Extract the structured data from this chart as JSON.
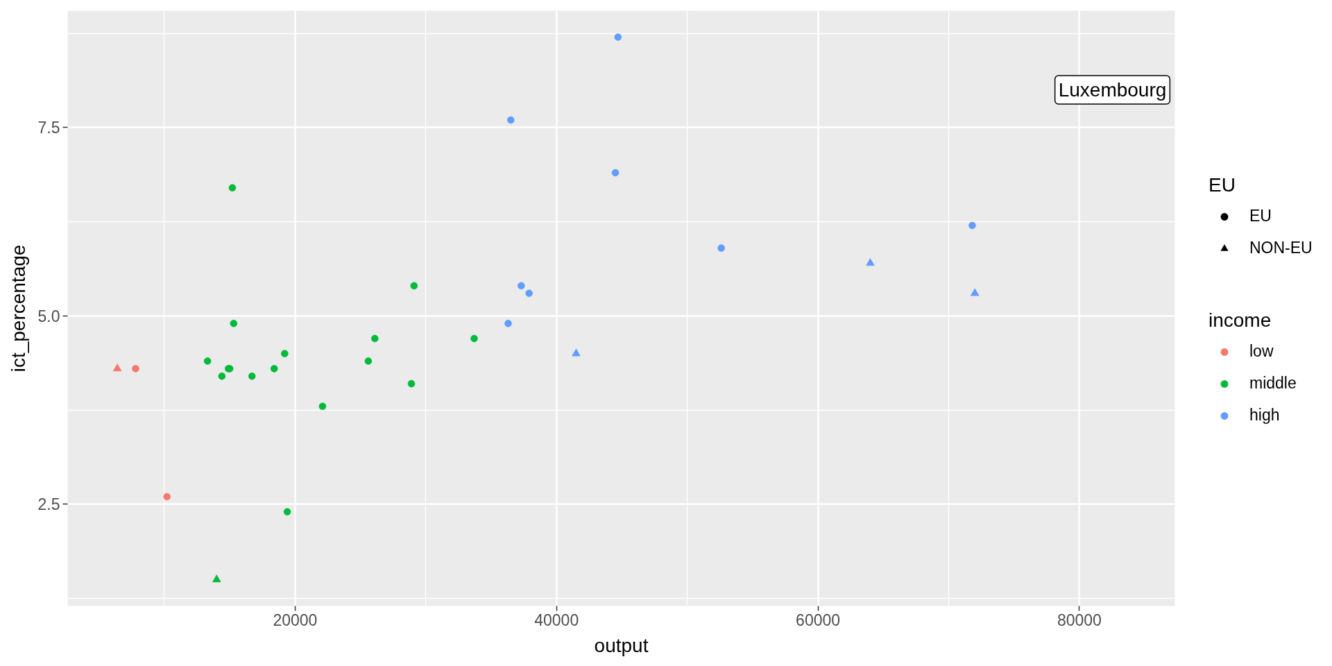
{
  "chart_data": {
    "type": "scatter",
    "xlabel": "output",
    "ylabel": "ict_percentage",
    "legend_title": [
      "EU",
      "income"
    ],
    "legend": "right",
    "grid": true,
    "xlim": [
      2600,
      87300
    ],
    "ylim": [
      1.15,
      9.05
    ],
    "xticks": [
      20000,
      40000,
      60000,
      80000
    ],
    "yticks": [
      2.5,
      {
        "value": 5,
        "label": "5.0"
      },
      7.5
    ],
    "series": [
      {
        "name": "EU",
        "color": "#000000",
        "marker": "circle"
      },
      {
        "name": "NON-EU",
        "color": "#000000",
        "marker": "triangle"
      },
      {
        "name": "low",
        "color": "#f8766d",
        "marker": "circle",
        "x": [
          7800,
          10200
        ],
        "values": [
          4.3,
          2.6
        ]
      },
      {
        "name": "middle",
        "color": "#00ba38",
        "marker": "circle",
        "x": [
          13300,
          14400,
          14900,
          15000,
          15300,
          15200,
          16700,
          18400,
          19200,
          19400,
          22100,
          25600,
          26100,
          28900,
          29100,
          33700
        ],
        "values": [
          4.4,
          4.2,
          4.3,
          4.3,
          4.9,
          6.7,
          4.2,
          4.3,
          4.5,
          2.4,
          3.8,
          4.4,
          4.7,
          4.1,
          5.4,
          4.7
        ]
      },
      {
        "name": "high",
        "color": "#619cff",
        "marker": "circle",
        "x": [
          36300,
          36500,
          37300,
          37900,
          44500,
          44700,
          52600,
          71800
        ],
        "values": [
          4.9,
          7.6,
          5.4,
          5.3,
          6.9,
          8.7,
          5.9,
          6.2
        ]
      },
      {
        "color": "#f8766d",
        "marker": "triangle",
        "x": [
          6400
        ],
        "values": [
          4.3
        ]
      },
      {
        "color": "#00ba38",
        "marker": "triangle",
        "x": [
          14000
        ],
        "values": [
          1.5
        ]
      },
      {
        "color": "#619cff",
        "marker": "triangle",
        "x": [
          41500,
          64000,
          72000
        ],
        "values": [
          4.5,
          5.7,
          5.3
        ]
      }
    ],
    "annotations": [
      "Luxembourg"
    ]
  }
}
